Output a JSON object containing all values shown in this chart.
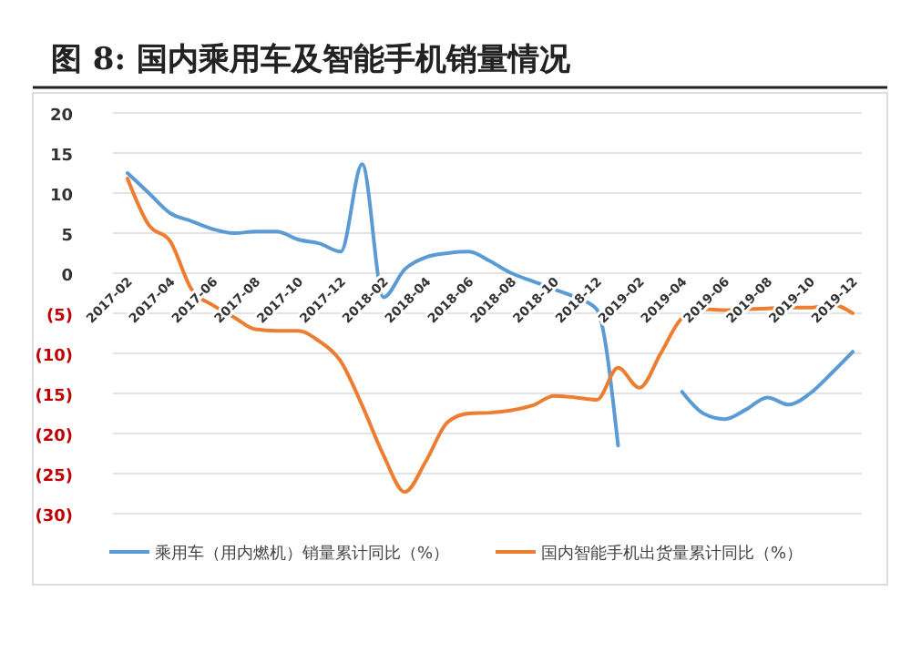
{
  "chart_data": {
    "type": "line",
    "title": "图 8: 国内乘用车及智能手机销量情况",
    "categories": [
      "2017-02",
      null,
      "2017-04",
      null,
      "2017-06",
      null,
      "2017-08",
      null,
      "2017-10",
      null,
      "2017-12",
      null,
      "2018-02",
      null,
      "2018-04",
      null,
      "2018-06",
      null,
      "2018-08",
      null,
      "2018-10",
      null,
      "2018-12",
      null,
      "2019-02",
      null,
      "2019-04",
      null,
      "2019-06",
      null,
      "2019-08",
      null,
      "2019-10",
      null,
      "2019-12"
    ],
    "series": [
      {
        "name": "乘用车（用内燃机）销量累计同比（%）",
        "color": "#5b9bd5",
        "values": [
          12.5,
          10,
          7.5,
          6.5,
          5.5,
          5,
          5.2,
          5.2,
          4.2,
          3.7,
          2.7,
          13.6,
          -3,
          0.5,
          2,
          2.5,
          2.7,
          1.5,
          0,
          -1,
          -2,
          -3,
          -4.5,
          -21.5,
          null,
          null,
          -14.8,
          -17.5,
          -18.2,
          -17,
          -15.5,
          -16.4,
          -15,
          -12.5,
          -9.8
        ]
      },
      {
        "name": "国内智能手机出货量累计同比（%）",
        "color": "#ed7d31",
        "values": [
          11.8,
          6,
          4,
          -2,
          -4,
          -5.5,
          -7,
          -7.2,
          -7.2,
          -8.5,
          -11,
          -16.5,
          -22.7,
          -27.3,
          -23.4,
          -18.6,
          -17.5,
          -17.4,
          -17.1,
          -16.5,
          -15.3,
          -15.5,
          -15.8,
          -11.8,
          -14.3,
          -10,
          -5.6,
          -4.5,
          -4.6,
          -4.5,
          -4.4,
          -4.3,
          -4.3,
          -3.9,
          -5
        ]
      }
    ],
    "ylim": [
      -30,
      20
    ],
    "yticks": [
      20,
      15,
      10,
      5,
      0,
      {
        "value": -5,
        "label": "(5)"
      },
      {
        "value": -10,
        "label": "(10)"
      },
      {
        "value": -15,
        "label": "(15)"
      },
      {
        "value": -20,
        "label": "(20)"
      },
      {
        "value": -25,
        "label": "(25)"
      },
      {
        "value": -30,
        "label": "(30)"
      }
    ],
    "grid": "y",
    "legend": "bottom",
    "marker": "none",
    "line_style": "solid"
  }
}
